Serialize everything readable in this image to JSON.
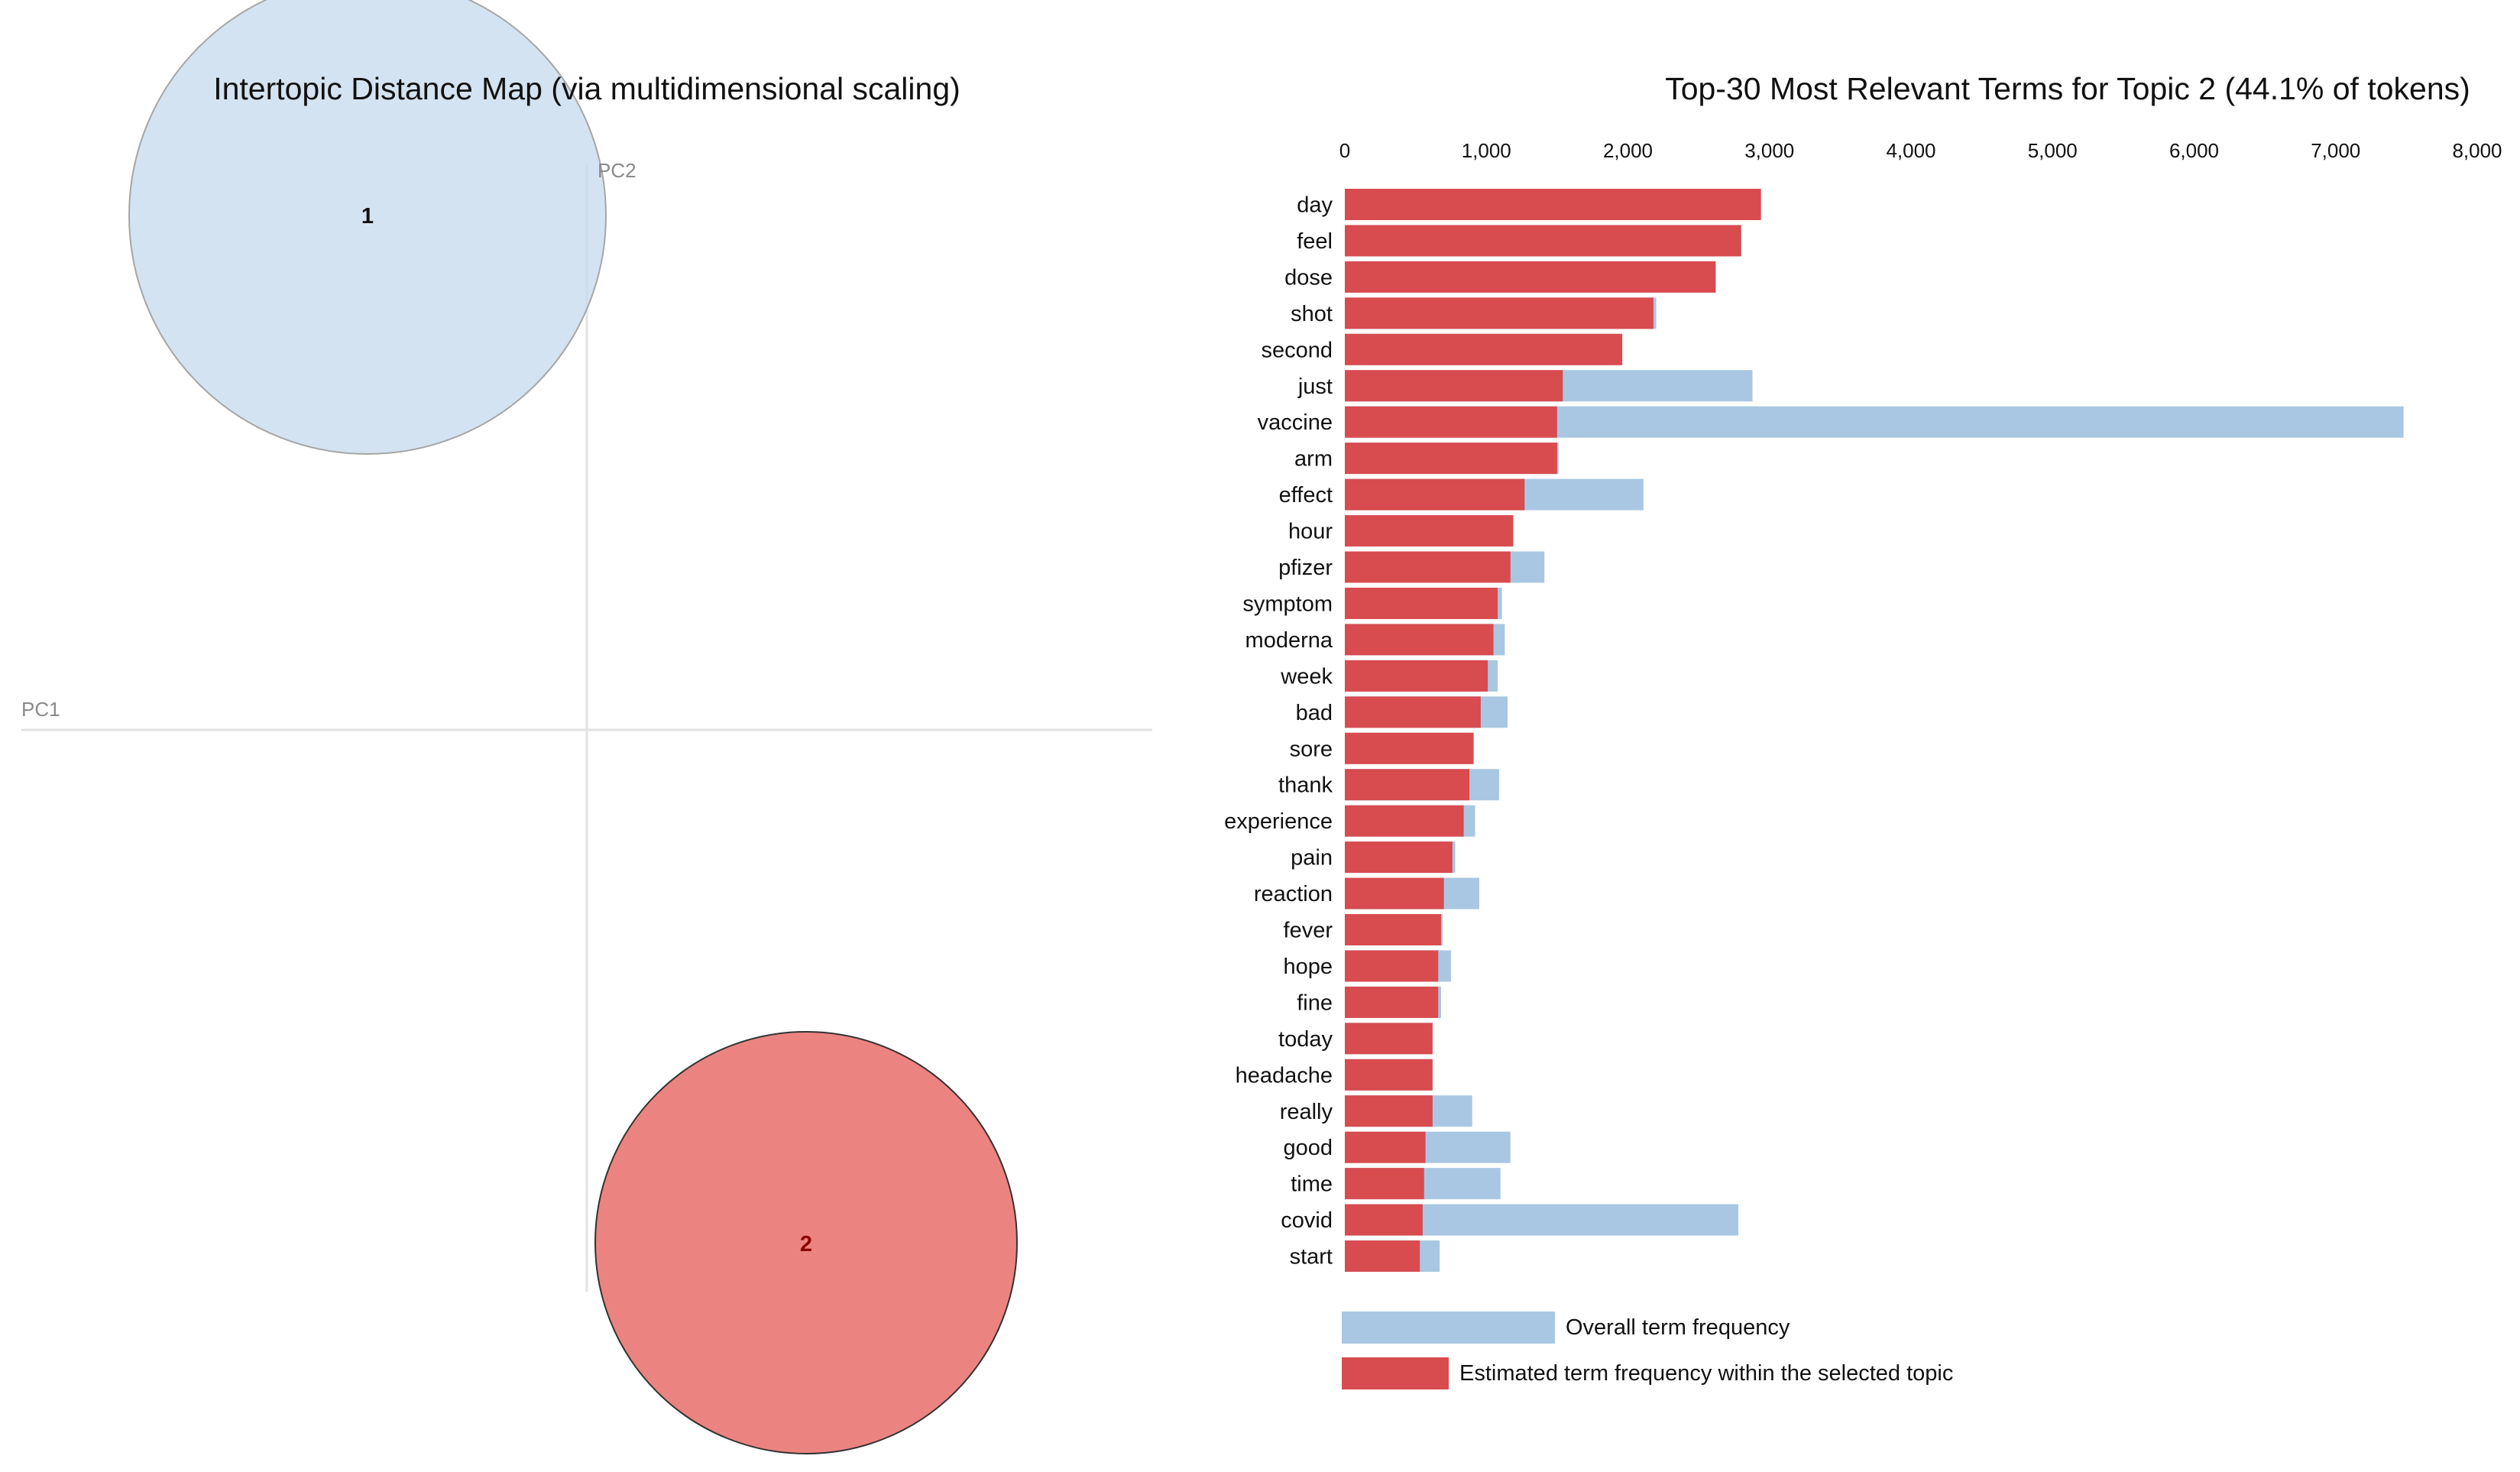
{
  "chart_data": [
    {
      "type": "scatter",
      "title": "Intertopic Distance Map (via multidimensional scaling)",
      "xlabel": "PC1",
      "ylabel": "PC2",
      "topics": [
        {
          "label": "1",
          "pc1": -0.27,
          "pc2": 0.62,
          "relative_size": 1.13,
          "color": "#c6d9ec"
        },
        {
          "label": "2",
          "pc1": 0.27,
          "pc2": -0.62,
          "relative_size": 1.0,
          "color": "#e6625e"
        }
      ],
      "grid": false
    },
    {
      "type": "bar",
      "orientation": "horizontal",
      "title": "Top-30 Most Relevant Terms for Topic 2 (44.1% of tokens)",
      "xlim": [
        0,
        8000
      ],
      "ticks": [
        0,
        1000,
        2000,
        3000,
        4000,
        5000,
        6000,
        7000,
        8000
      ],
      "tick_labels": [
        "0",
        "1,000",
        "2,000",
        "3,000",
        "4,000",
        "5,000",
        "6,000",
        "7,000",
        "8,000"
      ],
      "categories": [
        "day",
        "feel",
        "dose",
        "shot",
        "second",
        "just",
        "vaccine",
        "arm",
        "effect",
        "hour",
        "pfizer",
        "symptom",
        "moderna",
        "week",
        "bad",
        "sore",
        "thank",
        "experience",
        "pain",
        "reaction",
        "fever",
        "hope",
        "fine",
        "today",
        "headache",
        "really",
        "good",
        "time",
        "covid",
        "start"
      ],
      "series": [
        {
          "name": "Overall term frequency",
          "color": "#a9c7e2",
          "values": [
            2940,
            2800,
            2620,
            2200,
            1960,
            2880,
            7480,
            1510,
            2110,
            1180,
            1410,
            1110,
            1130,
            1080,
            1150,
            910,
            1090,
            920,
            780,
            950,
            690,
            750,
            680,
            620,
            620,
            900,
            1170,
            1100,
            2780,
            670
          ]
        },
        {
          "name": "Estimated term frequency within the selected topic",
          "color": "#d84b4f",
          "values": [
            2940,
            2800,
            2620,
            2180,
            1960,
            1540,
            1500,
            1500,
            1270,
            1190,
            1170,
            1080,
            1050,
            1010,
            960,
            910,
            880,
            840,
            760,
            700,
            680,
            660,
            660,
            620,
            620,
            620,
            570,
            560,
            550,
            530
          ]
        }
      ],
      "legend": "bottom-left"
    }
  ]
}
